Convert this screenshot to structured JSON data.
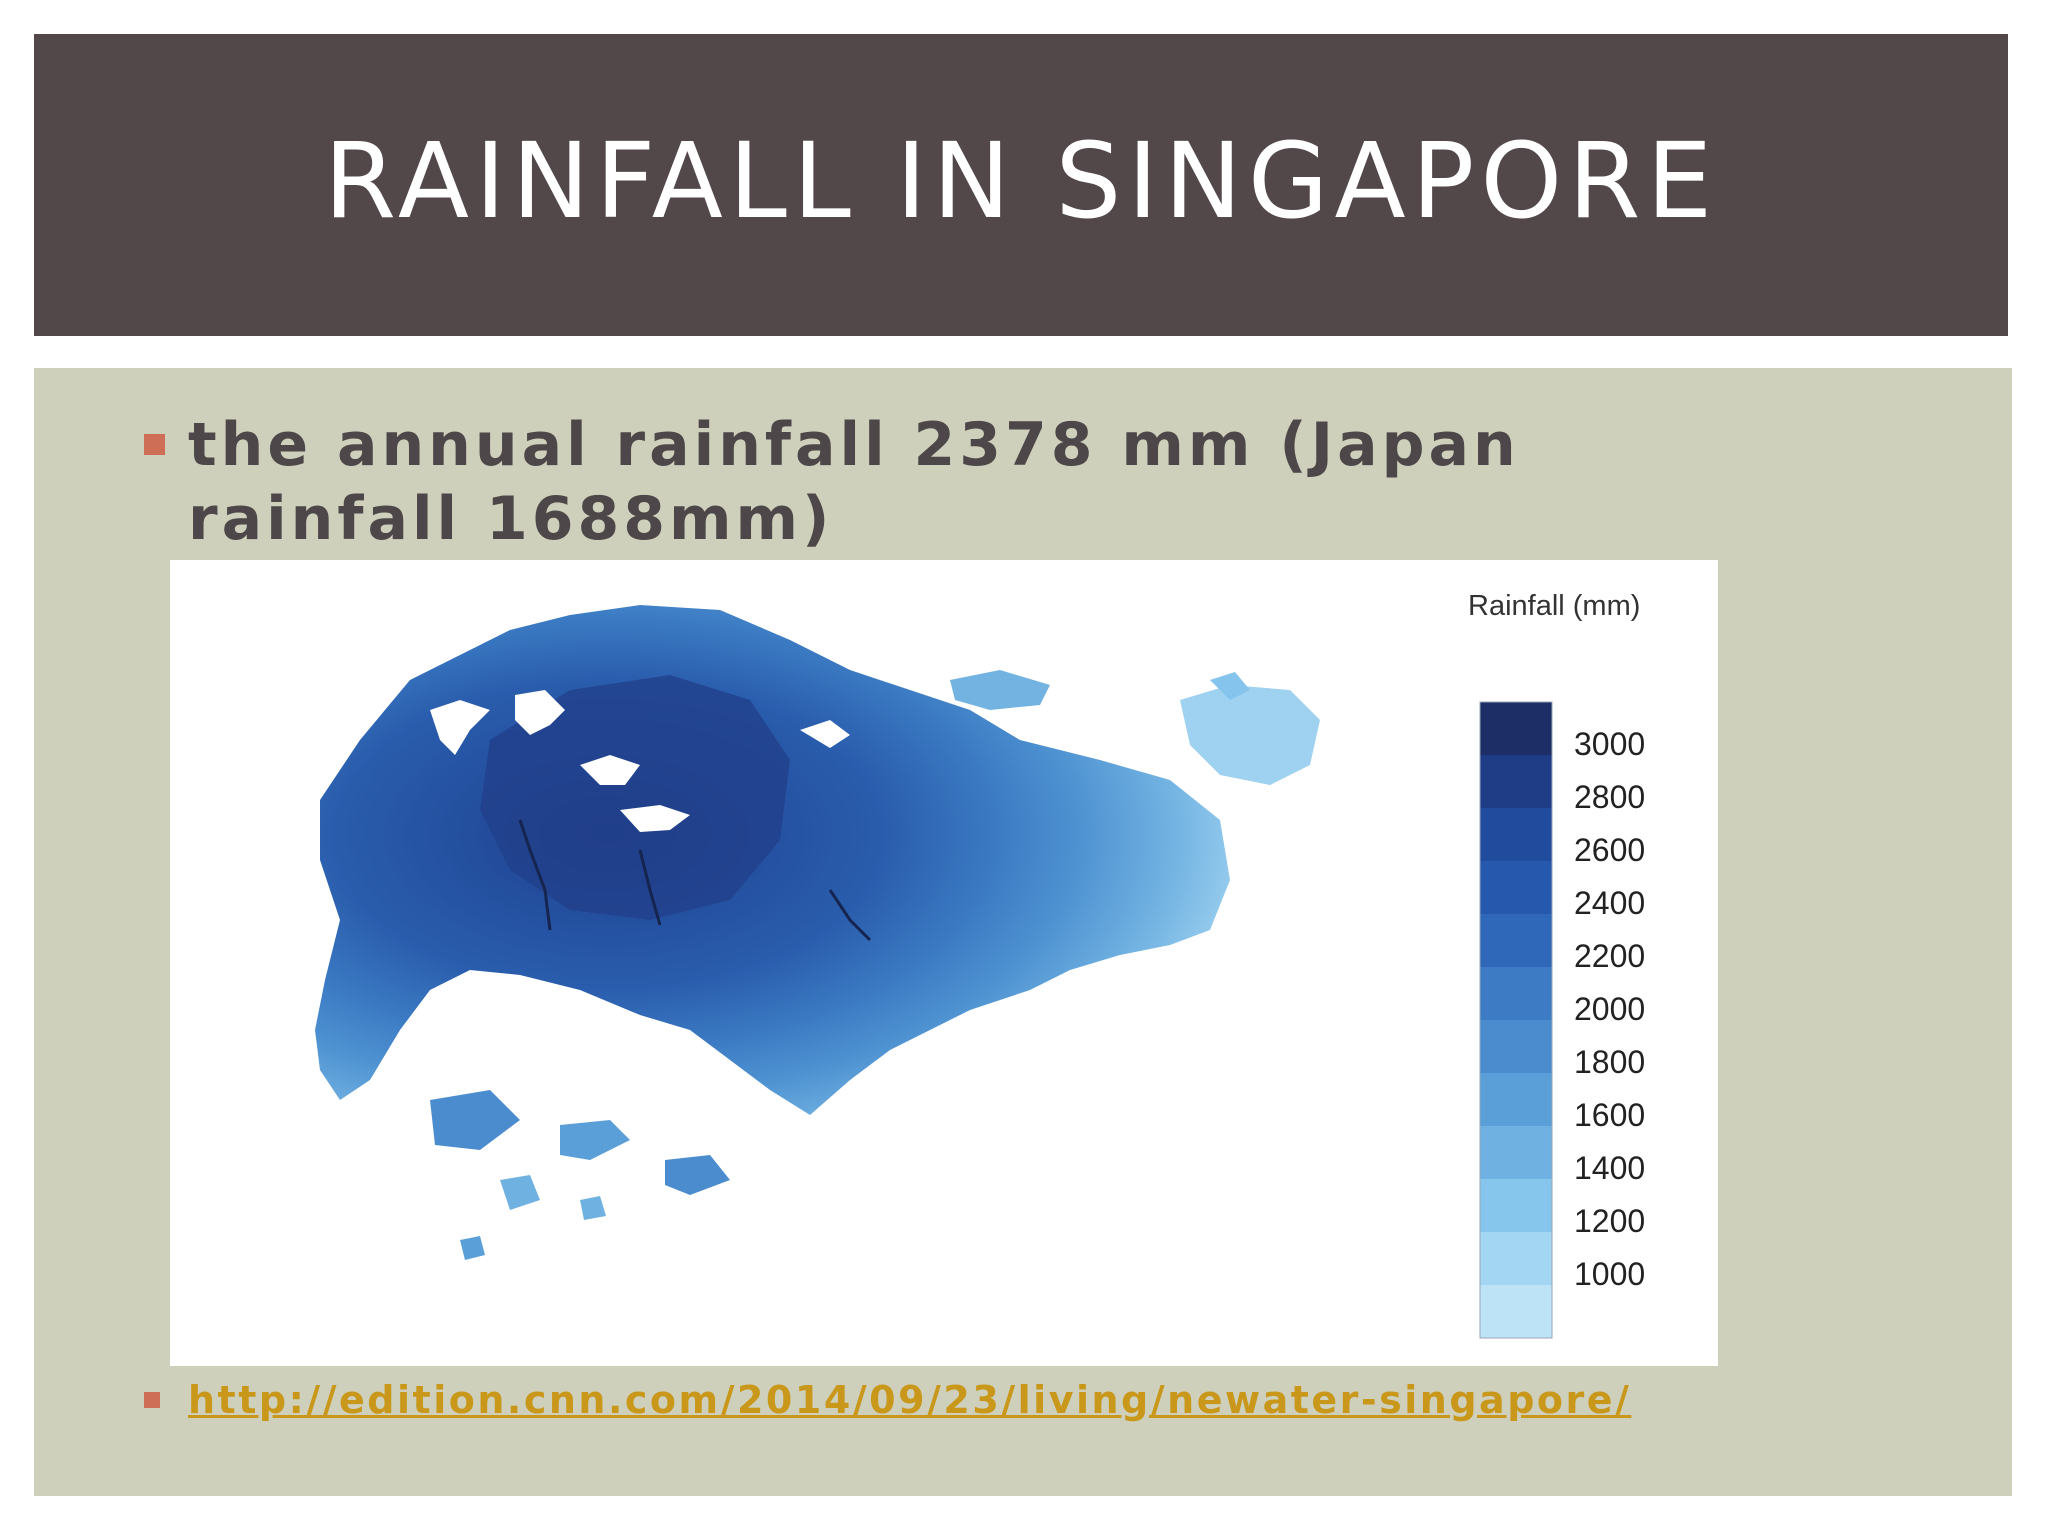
{
  "slide": {
    "title": "RAINFALL IN SINGAPORE",
    "bullet_text": "the annual rainfall 2378 mm (Japan rainfall 1688mm)",
    "source_url": "http://edition.cnn.com/2014/09/23/living/newater-singapore/"
  },
  "map": {
    "legend_title": "Rainfall (mm)",
    "legend_labels": [
      "3000",
      "2800",
      "2600",
      "2400",
      "2200",
      "2000",
      "1800",
      "1600",
      "1400",
      "1200",
      "1000"
    ],
    "legend_colors": [
      "#1d2e66",
      "#1e3d86",
      "#214c9d",
      "#2659ae",
      "#2f68b9",
      "#3d7cc4",
      "#4b8ccf",
      "#5b9fd9",
      "#6fb2e2",
      "#87c6ec",
      "#a2d6f2",
      "#bde4f6"
    ],
    "colors": {
      "title_bar": "#52484a",
      "panel": "#ced0bb",
      "bullet": "#cf6e57",
      "text": "#4d4749",
      "link": "#c9971a"
    }
  }
}
